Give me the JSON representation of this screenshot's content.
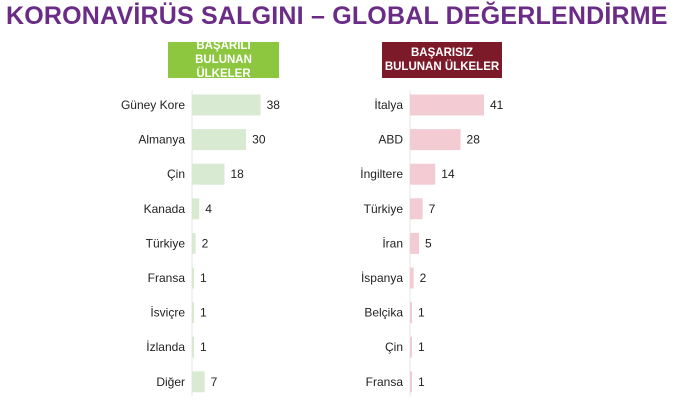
{
  "title": "KORONAVİRÜS SALGINI – GLOBAL DEĞERLENDİRME",
  "colors": {
    "title": "#6a2c86",
    "good_badge": "#8dc63f",
    "bad_badge": "#7d1a2a",
    "good_bar": "#d9ead3",
    "bad_bar": "#f2ccd2"
  },
  "chart_data": [
    {
      "type": "bar",
      "orientation": "horizontal",
      "title": "BAŞARILI BULUNAN ÜLKELER",
      "title_lines": [
        "BAŞARILI",
        "BULUNAN ÜLKELER"
      ],
      "categories": [
        "Güney Kore",
        "Almanya",
        "Çin",
        "Kanada",
        "Türkiye",
        "Fransa",
        "İsviçre",
        "İzlanda",
        "Diğer"
      ],
      "values": [
        38,
        30,
        18,
        4,
        2,
        1,
        1,
        1,
        7
      ],
      "xlim": [
        0,
        41
      ],
      "grid": false,
      "legend": "none"
    },
    {
      "type": "bar",
      "orientation": "horizontal",
      "title": "BAŞARISIZ BULUNAN ÜLKELER",
      "title_lines": [
        "BAŞARISIZ",
        "BULUNAN ÜLKELER"
      ],
      "categories": [
        "İtalya",
        "ABD",
        "İngiltere",
        "Türkiye",
        "İran",
        "İspanya",
        "Belçika",
        "Çin",
        "Fransa"
      ],
      "values": [
        41,
        28,
        14,
        7,
        5,
        2,
        1,
        1,
        1
      ],
      "xlim": [
        0,
        41
      ],
      "grid": false,
      "legend": "none"
    }
  ]
}
